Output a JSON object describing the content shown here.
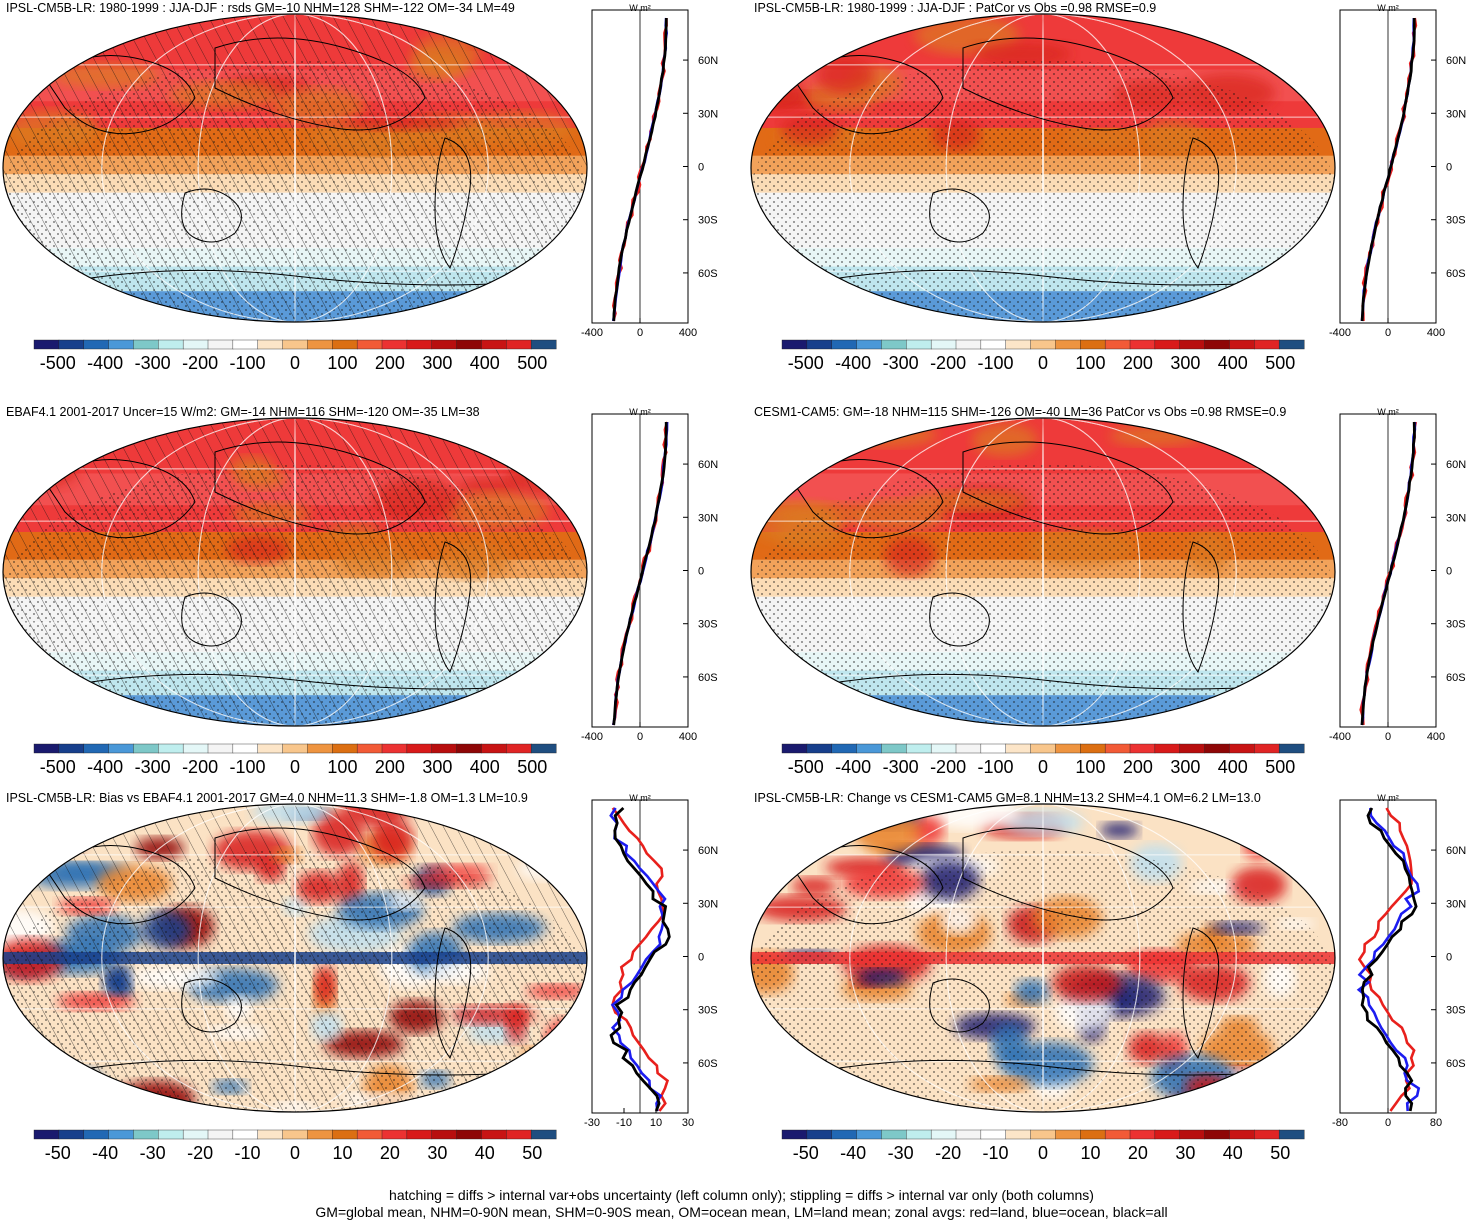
{
  "figure": {
    "footer_line1": "hatching = diffs > internal var+obs uncertainty (left column only); stippling = diffs > internal var only (both columns)",
    "footer_line2": "GM=global mean, NHM=0-90N mean, SHM=0-90S mean, OM=ocean mean, LM=land mean; zonal avgs: red=land, blue=ocean, black=all",
    "colors": {
      "land_line": "#e8201c",
      "ocean_line": "#1c1cf0",
      "all_line": "#000000",
      "map_edge": "#000000",
      "grid_line": "#ffffff"
    },
    "unit_label": "W m²"
  },
  "chart_data": [
    {
      "type": "heatmap",
      "id": "p1",
      "title": "IPSL-CM5B-LR: 1980-1999 : JJA-DJF : rsds GM=-10 NHM=128 SHM=-122 OM=-34 LM=49",
      "field": "seasonal",
      "hatch": true,
      "stipple": true,
      "colorbar": {
        "range": [
          -550,
          550
        ],
        "ticks": [
          -500,
          -400,
          -300,
          -200,
          -100,
          0,
          100,
          200,
          300,
          400,
          500
        ]
      },
      "zonal": {
        "xlim": [
          -400,
          400
        ],
        "xticks": [
          -400,
          0,
          400
        ],
        "lat_ticks": [
          "60N",
          "30N",
          "0",
          "30S",
          "60S"
        ]
      }
    },
    {
      "type": "heatmap",
      "id": "p2",
      "title": "IPSL-CM5B-LR: 1980-1999 : JJA-DJF : PatCor vs Obs =0.98 RMSE=0.9",
      "field": "seasonal",
      "hatch": false,
      "stipple": true,
      "colorbar": {
        "range": [
          -550,
          550
        ],
        "ticks": [
          -500,
          -400,
          -300,
          -200,
          -100,
          0,
          100,
          200,
          300,
          400,
          500
        ]
      },
      "zonal": {
        "xlim": [
          -400,
          400
        ],
        "xticks": [
          -400,
          0,
          400
        ],
        "lat_ticks": [
          "60N",
          "30N",
          "0",
          "30S",
          "60S"
        ]
      }
    },
    {
      "type": "heatmap",
      "id": "p3",
      "title": "EBAF4.1 2001-2017 Uncer=15 W/m2: GM=-14 NHM=116 SHM=-120 OM=-35 LM=38",
      "field": "seasonal",
      "hatch": true,
      "stipple": true,
      "colorbar": {
        "range": [
          -550,
          550
        ],
        "ticks": [
          -500,
          -400,
          -300,
          -200,
          -100,
          0,
          100,
          200,
          300,
          400,
          500
        ]
      },
      "zonal": {
        "xlim": [
          -400,
          400
        ],
        "xticks": [
          -400,
          0,
          400
        ],
        "lat_ticks": [
          "60N",
          "30N",
          "0",
          "30S",
          "60S"
        ]
      }
    },
    {
      "type": "heatmap",
      "id": "p4",
      "title": "CESM1-CAM5: GM=-18 NHM=115 SHM=-126 OM=-40 LM=36 PatCor vs Obs =0.98 RMSE=0.9",
      "field": "seasonal",
      "hatch": false,
      "stipple": true,
      "colorbar": {
        "range": [
          -550,
          550
        ],
        "ticks": [
          -500,
          -400,
          -300,
          -200,
          -100,
          0,
          100,
          200,
          300,
          400,
          500
        ]
      },
      "zonal": {
        "xlim": [
          -400,
          400
        ],
        "xticks": [
          -400,
          0,
          400
        ],
        "lat_ticks": [
          "60N",
          "30N",
          "0",
          "30S",
          "60S"
        ]
      }
    },
    {
      "type": "heatmap",
      "id": "p5",
      "title": "IPSL-CM5B-LR: Bias vs EBAF4.1 2001-2017 GM=4.0 NHM=11.3 SHM=-1.8 OM=1.3 LM=10.9",
      "field": "bias",
      "hatch": true,
      "stipple": true,
      "colorbar": {
        "range": [
          -55,
          55
        ],
        "ticks": [
          -50,
          -40,
          -30,
          -20,
          -10,
          0,
          10,
          20,
          30,
          40,
          50
        ]
      },
      "zonal": {
        "xlim": [
          -30,
          30
        ],
        "xticks": [
          -30,
          -10,
          10,
          30
        ],
        "lat_ticks": [
          "60N",
          "30N",
          "0",
          "30S",
          "60S"
        ]
      }
    },
    {
      "type": "heatmap",
      "id": "p6",
      "title": "IPSL-CM5B-LR: Change vs CESM1-CAM5 GM=8.1 NHM=13.2 SHM=4.1 OM=6.2 LM=13.0",
      "field": "change",
      "hatch": false,
      "stipple": true,
      "colorbar": {
        "range": [
          -55,
          55
        ],
        "ticks": [
          -50,
          -40,
          -30,
          -20,
          -10,
          0,
          10,
          20,
          30,
          40,
          50
        ]
      },
      "zonal": {
        "xlim": [
          -80,
          80
        ],
        "xticks": [
          -80,
          0,
          80
        ],
        "lat_ticks": [
          "60N",
          "30N",
          "0",
          "30S",
          "60S"
        ]
      }
    }
  ],
  "colormap": [
    "#1a1a6e",
    "#173f8c",
    "#2168b4",
    "#4a98d8",
    "#7ec8c8",
    "#bfeeee",
    "#e4f7f7",
    "#f4f4f4",
    "#ffffff",
    "#fce5c8",
    "#f8c68c",
    "#ee9440",
    "#dc6f12",
    "#f25a36",
    "#ec3232",
    "#d81a1a",
    "#b80e0e",
    "#8e0606",
    "#c81414",
    "#e02424",
    "#1f4e80"
  ]
}
